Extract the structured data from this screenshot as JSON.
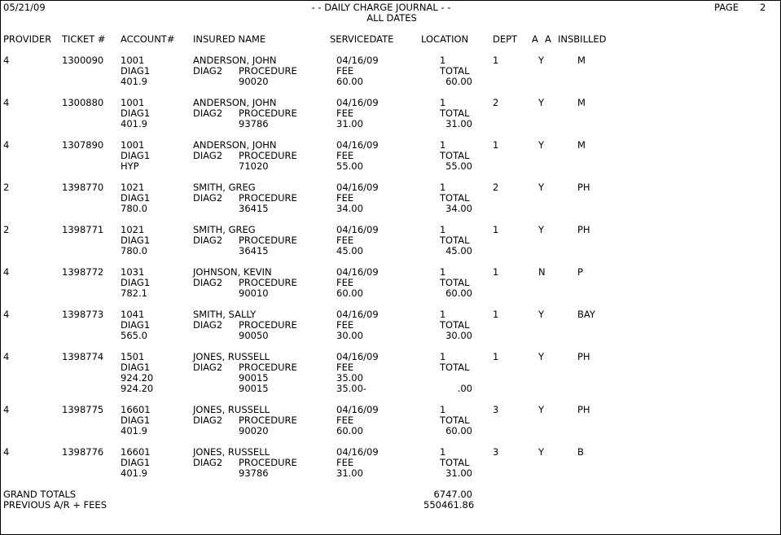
{
  "header": {
    "date": "05/21/09",
    "title": "- - DAILY CHARGE JOURNAL - -",
    "subtitle": "ALL DATES",
    "page_label": "PAGE",
    "page_number": "2"
  },
  "columns": {
    "provider": "PROVIDER",
    "ticket": "TICKET #",
    "account": "ACCOUNT#",
    "insured": "INSURED NAME",
    "servicedate": "SERVICEDATE",
    "location": "LOCATION",
    "dept": "DEPT",
    "a1": "A",
    "a2": "A",
    "insbilled": "INSBILLED"
  },
  "sub_labels": {
    "diag1": "DIAG1",
    "diag2": "DIAG2",
    "procedure": "PROCEDURE",
    "fee": "FEE",
    "total": "TOTAL"
  },
  "entries": [
    {
      "provider": "4",
      "ticket": "1300090",
      "account": "1001",
      "insured": "ANDERSON, JOHN",
      "servicedate": "04/16/09",
      "location": "1",
      "dept": "1",
      "a": "Y",
      "insbilled": "M",
      "lines": [
        {
          "diag": "401.9",
          "procedure": "90020",
          "fee": "60.00",
          "total": "60.00"
        }
      ]
    },
    {
      "provider": "4",
      "ticket": "1300880",
      "account": "1001",
      "insured": "ANDERSON, JOHN",
      "servicedate": "04/16/09",
      "location": "1",
      "dept": "2",
      "a": "Y",
      "insbilled": "M",
      "lines": [
        {
          "diag": "401.9",
          "procedure": "93786",
          "fee": "31.00",
          "total": "31.00"
        }
      ]
    },
    {
      "provider": "4",
      "ticket": "1307890",
      "account": "1001",
      "insured": "ANDERSON, JOHN",
      "servicedate": "04/16/09",
      "location": "1",
      "dept": "1",
      "a": "Y",
      "insbilled": "M",
      "lines": [
        {
          "diag": "HYP",
          "procedure": "71020",
          "fee": "55.00",
          "total": "55.00"
        }
      ]
    },
    {
      "provider": "2",
      "ticket": "1398770",
      "account": "1021",
      "insured": "SMITH, GREG",
      "servicedate": "04/16/09",
      "location": "1",
      "dept": "2",
      "a": "Y",
      "insbilled": "PH",
      "lines": [
        {
          "diag": "780.0",
          "procedure": "36415",
          "fee": "34.00",
          "total": "34.00"
        }
      ]
    },
    {
      "provider": "2",
      "ticket": "1398771",
      "account": "1021",
      "insured": "SMITH, GREG",
      "servicedate": "04/16/09",
      "location": "1",
      "dept": "1",
      "a": "Y",
      "insbilled": "PH",
      "lines": [
        {
          "diag": "780.0",
          "procedure": "36415",
          "fee": "45.00",
          "total": "45.00"
        }
      ]
    },
    {
      "provider": "4",
      "ticket": "1398772",
      "account": "1031",
      "insured": "JOHNSON, KEVIN",
      "servicedate": "04/16/09",
      "location": "1",
      "dept": "1",
      "a": "N",
      "insbilled": "P",
      "lines": [
        {
          "diag": "782.1",
          "procedure": "90010",
          "fee": "60.00",
          "total": "60.00"
        }
      ]
    },
    {
      "provider": "4",
      "ticket": "1398773",
      "account": "1041",
      "insured": "SMITH, SALLY",
      "servicedate": "04/16/09",
      "location": "1",
      "dept": "1",
      "a": "Y",
      "insbilled": "BAY",
      "lines": [
        {
          "diag": "565.0",
          "procedure": "90050",
          "fee": "30.00",
          "total": "30.00"
        }
      ]
    },
    {
      "provider": "4",
      "ticket": "1398774",
      "account": "1501",
      "insured": "JONES, RUSSELL",
      "servicedate": "04/16/09",
      "location": "1",
      "dept": "1",
      "a": "Y",
      "insbilled": "PH",
      "lines": [
        {
          "diag": "924.20",
          "procedure": "90015",
          "fee": "35.00",
          "total": ""
        },
        {
          "diag": "924.20",
          "procedure": "90015",
          "fee": "35.00-",
          "total": ".00"
        }
      ]
    },
    {
      "provider": "4",
      "ticket": "1398775",
      "account": "16601",
      "insured": "JONES, RUSSELL",
      "servicedate": "04/16/09",
      "location": "1",
      "dept": "3",
      "a": "Y",
      "insbilled": "PH",
      "lines": [
        {
          "diag": "401.9",
          "procedure": "90020",
          "fee": "60.00",
          "total": "60.00"
        }
      ]
    },
    {
      "provider": "4",
      "ticket": "1398776",
      "account": "16601",
      "insured": "JONES, RUSSELL",
      "servicedate": "04/16/09",
      "location": "1",
      "dept": "3",
      "a": "Y",
      "insbilled": "B",
      "lines": [
        {
          "diag": "401.9",
          "procedure": "93786",
          "fee": "31.00",
          "total": "31.00"
        }
      ]
    }
  ],
  "totals": {
    "grand_label": "GRAND TOTALS",
    "grand_value": "6747.00",
    "previous_label": "PREVIOUS A/R + FEES",
    "previous_value": "550461.86"
  }
}
